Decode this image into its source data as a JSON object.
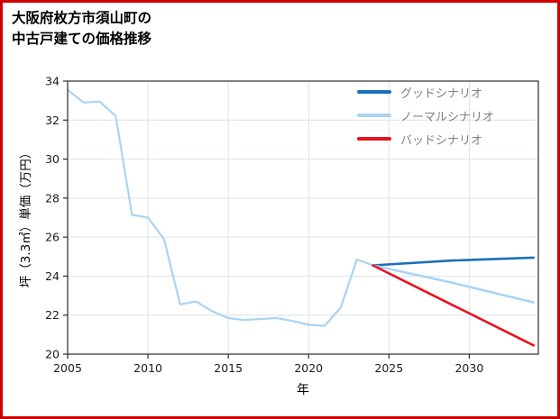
{
  "page": {
    "background": "#ffffff"
  },
  "chart_data": {
    "type": "line",
    "title": "大阪府枚方市須山町の\n中古戸建ての価格推移",
    "xlabel": "年",
    "ylabel": "坪（3.3㎡）単価（万円）",
    "xlim": [
      2005,
      2034.3
    ],
    "ylim": [
      20,
      34
    ],
    "xticks": [
      2005,
      2010,
      2015,
      2020,
      2025,
      2030
    ],
    "yticks": [
      20,
      22,
      24,
      26,
      28,
      30,
      32,
      34
    ],
    "grid": true,
    "legend_position": "upper right",
    "colors": {
      "border": "#d10000",
      "grid": "#dbe3ee",
      "axis": "#2b2b2b",
      "tick_label": "#1a1a1a",
      "legend_text": "#808080",
      "good": "#1b6fbc",
      "normal": "#a9d4f3",
      "bad": "#e8121e"
    },
    "legend": [
      {
        "label": "グッドシナリオ",
        "color": "#1b6fbc"
      },
      {
        "label": "ノーマルシナリオ",
        "color": "#a9d4f3"
      },
      {
        "label": "バッドシナリオ",
        "color": "#e8121e"
      }
    ],
    "series": [
      {
        "id": "history",
        "color": "#a9d4f3",
        "width": 2.2,
        "x": [
          2005,
          2006,
          2007,
          2008,
          2009,
          2010,
          2011,
          2012,
          2013,
          2014,
          2015,
          2016,
          2017,
          2018,
          2019,
          2020,
          2021,
          2022,
          2023,
          2024
        ],
        "values": [
          33.55,
          32.9,
          32.95,
          32.2,
          27.15,
          27.0,
          25.9,
          22.55,
          22.7,
          22.2,
          21.85,
          21.75,
          21.8,
          21.85,
          21.7,
          21.5,
          21.45,
          22.4,
          24.85,
          24.55
        ]
      },
      {
        "id": "good",
        "color": "#1b6fbc",
        "width": 2.6,
        "x": [
          2024,
          2029,
          2034
        ],
        "values": [
          24.55,
          24.8,
          24.95
        ]
      },
      {
        "id": "normal",
        "color": "#a9d4f3",
        "width": 2.6,
        "x": [
          2024,
          2029,
          2034
        ],
        "values": [
          24.55,
          23.65,
          22.65
        ]
      },
      {
        "id": "bad",
        "color": "#e8121e",
        "width": 2.6,
        "x": [
          2024,
          2029,
          2034
        ],
        "values": [
          24.55,
          22.5,
          20.45
        ]
      }
    ]
  }
}
